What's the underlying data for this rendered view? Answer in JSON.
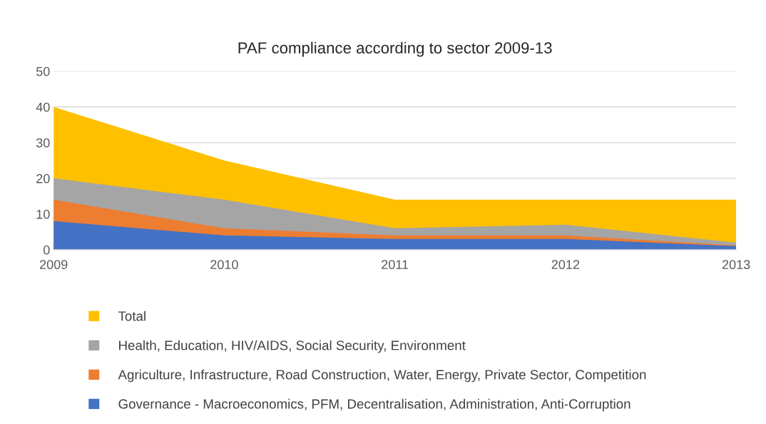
{
  "chart_data": {
    "type": "area",
    "title": "PAF compliance according to sector 2009-13",
    "x": [
      2009,
      2010,
      2011,
      2012,
      2013
    ],
    "xlim": [
      2009,
      2013
    ],
    "xticks": [
      2009,
      2010,
      2011,
      2012,
      2013
    ],
    "ylim": [
      0,
      50
    ],
    "yticks": [
      0,
      10,
      20,
      30,
      40,
      50
    ],
    "grid": "y",
    "legend": "bottom",
    "series": [
      {
        "name": "Total",
        "color": "#ffc000",
        "values": [
          40,
          25,
          14,
          14,
          14
        ]
      },
      {
        "name": "Health, Education, HIV/AIDS, Social Security, Environment",
        "color": "#a5a5a5",
        "values": [
          20,
          14,
          6,
          7,
          2
        ]
      },
      {
        "name": "Agriculture, Infrastructure, Road Construction, Water, Energy, Private Sector, Competition",
        "color": "#ed7d31",
        "values": [
          14,
          6,
          4,
          4,
          1.2
        ]
      },
      {
        "name": "Governance - Macroeconomics, PFM, Decentralisation, Administration, Anti-Corruption",
        "color": "#4472c4",
        "values": [
          8,
          4,
          3,
          3,
          1
        ]
      }
    ]
  }
}
